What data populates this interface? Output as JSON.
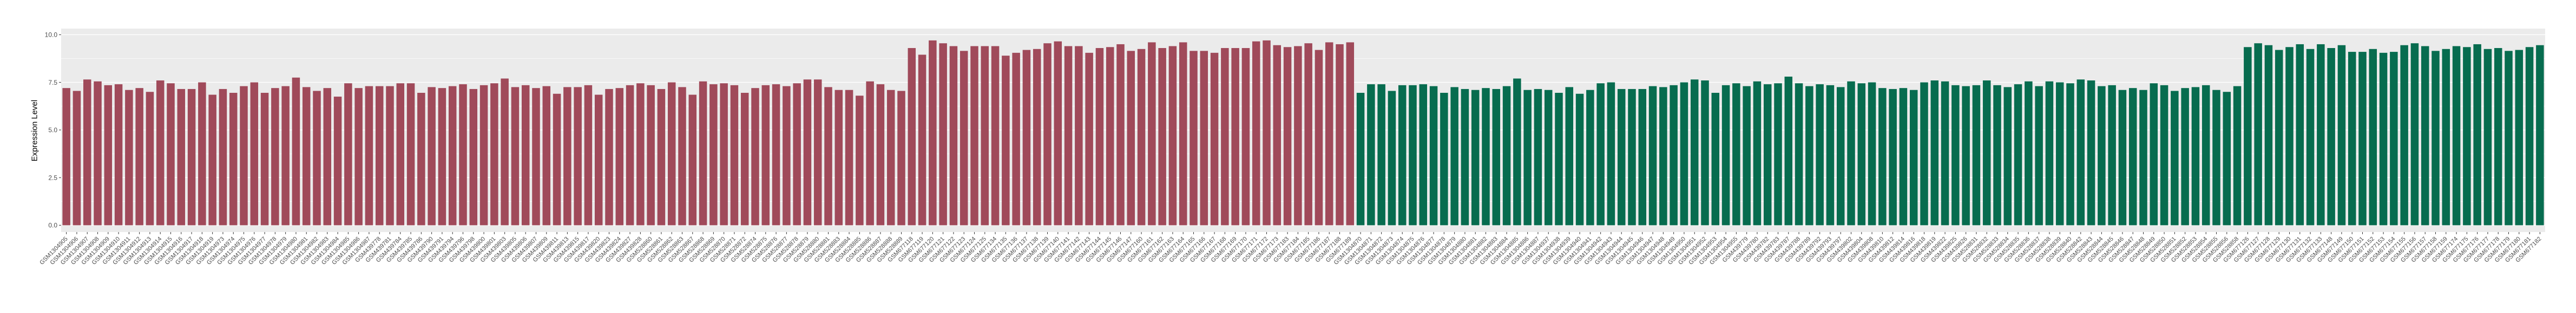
{
  "chart_data": {
    "type": "bar",
    "title": "",
    "xlabel": "",
    "ylabel": "Expression Level",
    "ylim": [
      0,
      10
    ],
    "yticks": [
      0,
      2.5,
      5,
      7.5,
      10
    ],
    "ytick_labels": [
      "0.0",
      "2.5",
      "5.0",
      "7.5",
      "10.0"
    ],
    "yticks_minor": [
      1.25,
      3.75,
      6.25,
      8.75
    ],
    "grid": "on",
    "legend": "none",
    "panel_color": "#EBEBEB",
    "gridline_color": "#FFFFFF",
    "tick_text_color": "#4D4D4D",
    "groups": [
      {
        "name": "group-1-red",
        "color": "#A04A5A",
        "from": 0,
        "to": 123
      },
      {
        "name": "group-2-green",
        "color": "#076C4F",
        "from": 124,
        "to": 237
      }
    ],
    "categories": [
      "GSM1304905",
      "GSM1304906",
      "GSM1304907",
      "GSM1304908",
      "GSM1304909",
      "GSM1304910",
      "GSM1304911",
      "GSM1304912",
      "GSM1304913",
      "GSM1304914",
      "GSM1304915",
      "GSM1304916",
      "GSM1304917",
      "GSM1304918",
      "GSM1304919",
      "GSM1304973",
      "GSM1304974",
      "GSM1304975",
      "GSM1304976",
      "GSM1304977",
      "GSM1304978",
      "GSM1304979",
      "GSM1304980",
      "GSM1304981",
      "GSM1304982",
      "GSM1304983",
      "GSM1304984",
      "GSM1304985",
      "GSM1304986",
      "GSM1304987",
      "GSM439778",
      "GSM439781",
      "GSM439784",
      "GSM439785",
      "GSM439786",
      "GSM439790",
      "GSM439791",
      "GSM439794",
      "GSM439796",
      "GSM439798",
      "GSM439800",
      "GSM439801",
      "GSM439803",
      "GSM439805",
      "GSM439806",
      "GSM439807",
      "GSM439809",
      "GSM439811",
      "GSM439813",
      "GSM439815",
      "GSM439817",
      "GSM439820",
      "GSM439823",
      "GSM439824",
      "GSM439827",
      "GSM439828",
      "GSM528860",
      "GSM528861",
      "GSM528862",
      "GSM528863",
      "GSM528867",
      "GSM528868",
      "GSM528869",
      "GSM528870",
      "GSM528871",
      "GSM528872",
      "GSM528874",
      "GSM528875",
      "GSM528876",
      "GSM528877",
      "GSM528878",
      "GSM528879",
      "GSM528880",
      "GSM528881",
      "GSM528883",
      "GSM528884",
      "GSM528885",
      "GSM528886",
      "GSM528887",
      "GSM528888",
      "GSM528889",
      "GSM677118",
      "GSM677119",
      "GSM677120",
      "GSM677121",
      "GSM677122",
      "GSM677123",
      "GSM677124",
      "GSM677125",
      "GSM677134",
      "GSM677135",
      "GSM677136",
      "GSM677137",
      "GSM677138",
      "GSM677139",
      "GSM677140",
      "GSM677141",
      "GSM677142",
      "GSM677143",
      "GSM677144",
      "GSM677145",
      "GSM677146",
      "GSM677147",
      "GSM677160",
      "GSM677161",
      "GSM677162",
      "GSM677163",
      "GSM677164",
      "GSM677165",
      "GSM677166",
      "GSM677167",
      "GSM677168",
      "GSM677169",
      "GSM677170",
      "GSM677171",
      "GSM677172",
      "GSM677173",
      "GSM677183",
      "GSM677184",
      "GSM677185",
      "GSM677186",
      "GSM677187",
      "GSM677188",
      "GSM677189",
      "GSM1304870",
      "GSM1304871",
      "GSM1304872",
      "GSM1304873",
      "GSM1304874",
      "GSM1304875",
      "GSM1304876",
      "GSM1304877",
      "GSM1304878",
      "GSM1304879",
      "GSM1304880",
      "GSM1304881",
      "GSM1304882",
      "GSM1304883",
      "GSM1304884",
      "GSM1304885",
      "GSM1304886",
      "GSM1304887",
      "GSM1304937",
      "GSM1304938",
      "GSM1304939",
      "GSM1304940",
      "GSM1304941",
      "GSM1304942",
      "GSM1304943",
      "GSM1304944",
      "GSM1304945",
      "GSM1304946",
      "GSM1304947",
      "GSM1304948",
      "GSM1304949",
      "GSM1304950",
      "GSM1304951",
      "GSM1304952",
      "GSM1304953",
      "GSM1304954",
      "GSM1304955",
      "GSM439779",
      "GSM439780",
      "GSM439782",
      "GSM439783",
      "GSM439787",
      "GSM439788",
      "GSM439789",
      "GSM439792",
      "GSM439793",
      "GSM439797",
      "GSM439802",
      "GSM439804",
      "GSM439808",
      "GSM439810",
      "GSM439812",
      "GSM439814",
      "GSM439816",
      "GSM439818",
      "GSM439819",
      "GSM439822",
      "GSM439825",
      "GSM439826",
      "GSM528831",
      "GSM528832",
      "GSM528833",
      "GSM528834",
      "GSM528835",
      "GSM528836",
      "GSM528837",
      "GSM528838",
      "GSM528839",
      "GSM528840",
      "GSM528842",
      "GSM528843",
      "GSM528844",
      "GSM528845",
      "GSM528846",
      "GSM528847",
      "GSM528848",
      "GSM528849",
      "GSM528850",
      "GSM528851",
      "GSM528852",
      "GSM528853",
      "GSM528854",
      "GSM528855",
      "GSM528856",
      "GSM528858",
      "GSM677126",
      "GSM677127",
      "GSM677128",
      "GSM677129",
      "GSM677130",
      "GSM677131",
      "GSM677132",
      "GSM677133",
      "GSM677148",
      "GSM677149",
      "GSM677150",
      "GSM677151",
      "GSM677152",
      "GSM677153",
      "GSM677154",
      "GSM677155",
      "GSM677156",
      "GSM677157",
      "GSM677158",
      "GSM677159",
      "GSM677174",
      "GSM677175",
      "GSM677176",
      "GSM677177",
      "GSM677178",
      "GSM677179",
      "GSM677180",
      "GSM677181",
      "GSM677182"
    ],
    "values": [
      7.2,
      7.05,
      7.65,
      7.55,
      7.35,
      7.4,
      7.1,
      7.2,
      7.0,
      7.6,
      7.45,
      7.15,
      7.15,
      7.5,
      6.85,
      7.15,
      6.95,
      7.3,
      7.5,
      6.95,
      7.2,
      7.3,
      7.75,
      7.25,
      7.05,
      7.2,
      6.75,
      7.45,
      7.2,
      7.3,
      7.3,
      7.3,
      7.45,
      7.45,
      6.95,
      7.25,
      7.2,
      7.3,
      7.4,
      7.15,
      7.35,
      7.45,
      7.7,
      7.25,
      7.35,
      7.2,
      7.3,
      6.9,
      7.25,
      7.25,
      7.35,
      6.85,
      7.15,
      7.2,
      7.35,
      7.45,
      7.35,
      7.15,
      7.5,
      7.25,
      6.85,
      7.55,
      7.4,
      7.45,
      7.35,
      6.95,
      7.2,
      7.35,
      7.4,
      7.3,
      7.45,
      7.65,
      7.65,
      7.25,
      7.1,
      7.1,
      6.8,
      7.55,
      7.4,
      7.1,
      7.05,
      9.3,
      8.95,
      9.7,
      9.55,
      9.4,
      9.15,
      9.4,
      9.4,
      9.4,
      8.9,
      9.05,
      9.2,
      9.25,
      9.55,
      9.65,
      9.4,
      9.4,
      9.05,
      9.3,
      9.35,
      9.5,
      9.15,
      9.25,
      9.6,
      9.3,
      9.4,
      9.6,
      9.15,
      9.15,
      9.05,
      9.3,
      9.3,
      9.3,
      9.65,
      9.7,
      9.45,
      9.35,
      9.4,
      9.55,
      9.2,
      9.6,
      9.5,
      9.6,
      6.95,
      7.4,
      7.4,
      7.05,
      7.35,
      7.35,
      7.4,
      7.3,
      6.95,
      7.25,
      7.15,
      7.1,
      7.2,
      7.15,
      7.3,
      7.7,
      7.1,
      7.15,
      7.1,
      6.95,
      7.25,
      6.9,
      7.1,
      7.45,
      7.5,
      7.15,
      7.15,
      7.15,
      7.3,
      7.25,
      7.35,
      7.5,
      7.65,
      7.6,
      6.95,
      7.35,
      7.45,
      7.3,
      7.55,
      7.4,
      7.45,
      7.8,
      7.45,
      7.3,
      7.4,
      7.35,
      7.25,
      7.55,
      7.45,
      7.5,
      7.2,
      7.15,
      7.2,
      7.1,
      7.5,
      7.6,
      7.55,
      7.35,
      7.3,
      7.35,
      7.6,
      7.35,
      7.25,
      7.4,
      7.55,
      7.3,
      7.55,
      7.5,
      7.45,
      7.65,
      7.6,
      7.3,
      7.35,
      7.1,
      7.2,
      7.1,
      7.45,
      7.35,
      7.05,
      7.2,
      7.25,
      7.35,
      7.1,
      7.0,
      7.3,
      9.35,
      9.55,
      9.45,
      9.2,
      9.35,
      9.5,
      9.25,
      9.5,
      9.3,
      9.45,
      9.1,
      9.1,
      9.25,
      9.05,
      9.1,
      9.45,
      9.55,
      9.4,
      9.15,
      9.25,
      9.4,
      9.35,
      9.5,
      9.25,
      9.3,
      9.15,
      9.2,
      9.35,
      9.45
    ]
  }
}
